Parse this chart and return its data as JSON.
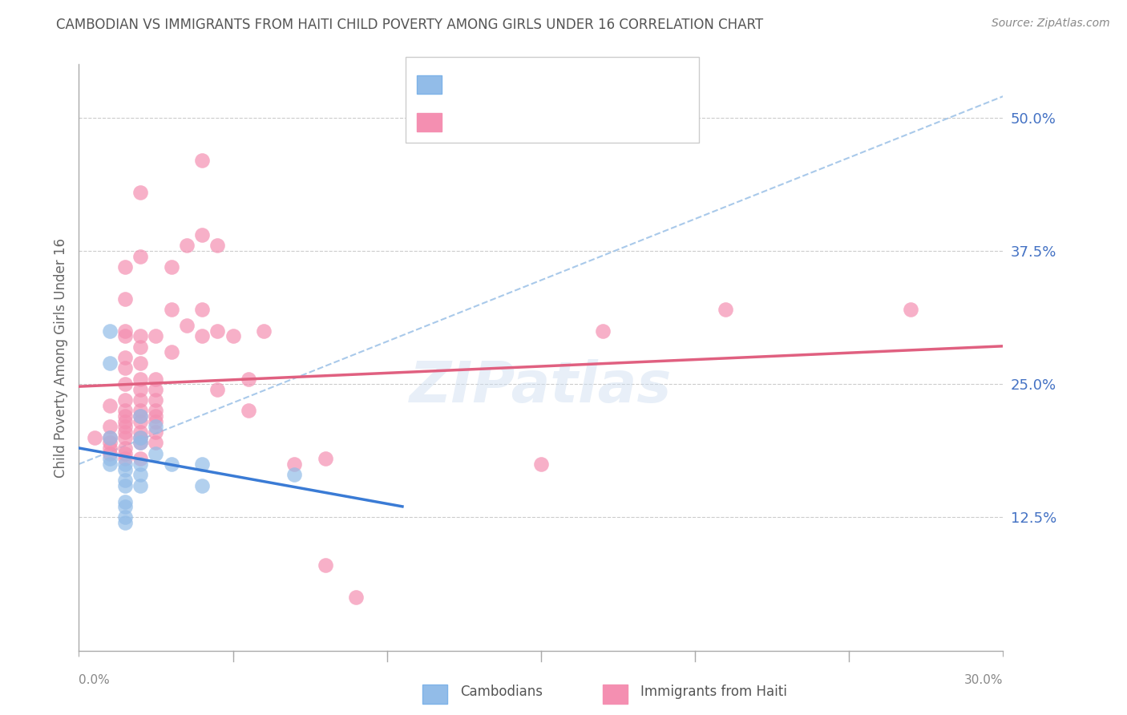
{
  "title": "CAMBODIAN VS IMMIGRANTS FROM HAITI CHILD POVERTY AMONG GIRLS UNDER 16 CORRELATION CHART",
  "source": "Source: ZipAtlas.com",
  "ylabel": "Child Poverty Among Girls Under 16",
  "xlabel_bottom_left": "0.0%",
  "xlabel_bottom_right": "30.0%",
  "right_ytick_labels": [
    "50.0%",
    "37.5%",
    "25.0%",
    "12.5%"
  ],
  "right_ytick_values": [
    0.5,
    0.375,
    0.25,
    0.125
  ],
  "xmin": 0.0,
  "xmax": 0.3,
  "ymin": 0.0,
  "ymax": 0.55,
  "cambodian_color": "#92bce8",
  "haiti_color": "#f48fb1",
  "watermark": "ZIPatlas",
  "background_color": "#ffffff",
  "grid_color": "#cccccc",
  "title_color": "#555555",
  "right_axis_label_color": "#4472c4",
  "dashed_line_color": "#a0c4e8",
  "cambodian_trend_color": "#3a7bd5",
  "haiti_trend_color": "#e06080",
  "cambodian_points": [
    [
      0.01,
      0.3
    ],
    [
      0.01,
      0.27
    ],
    [
      0.01,
      0.2
    ],
    [
      0.01,
      0.18
    ],
    [
      0.01,
      0.175
    ],
    [
      0.015,
      0.175
    ],
    [
      0.015,
      0.17
    ],
    [
      0.015,
      0.16
    ],
    [
      0.015,
      0.155
    ],
    [
      0.015,
      0.14
    ],
    [
      0.015,
      0.135
    ],
    [
      0.015,
      0.125
    ],
    [
      0.015,
      0.12
    ],
    [
      0.02,
      0.22
    ],
    [
      0.02,
      0.2
    ],
    [
      0.02,
      0.195
    ],
    [
      0.02,
      0.175
    ],
    [
      0.02,
      0.165
    ],
    [
      0.02,
      0.155
    ],
    [
      0.025,
      0.21
    ],
    [
      0.025,
      0.185
    ],
    [
      0.03,
      0.175
    ],
    [
      0.04,
      0.175
    ],
    [
      0.04,
      0.155
    ],
    [
      0.07,
      0.165
    ]
  ],
  "haiti_points": [
    [
      0.005,
      0.2
    ],
    [
      0.01,
      0.23
    ],
    [
      0.01,
      0.21
    ],
    [
      0.01,
      0.2
    ],
    [
      0.01,
      0.195
    ],
    [
      0.01,
      0.19
    ],
    [
      0.01,
      0.185
    ],
    [
      0.015,
      0.36
    ],
    [
      0.015,
      0.33
    ],
    [
      0.015,
      0.3
    ],
    [
      0.015,
      0.295
    ],
    [
      0.015,
      0.275
    ],
    [
      0.015,
      0.265
    ],
    [
      0.015,
      0.25
    ],
    [
      0.015,
      0.235
    ],
    [
      0.015,
      0.225
    ],
    [
      0.015,
      0.22
    ],
    [
      0.015,
      0.215
    ],
    [
      0.015,
      0.21
    ],
    [
      0.015,
      0.205
    ],
    [
      0.015,
      0.2
    ],
    [
      0.015,
      0.19
    ],
    [
      0.015,
      0.185
    ],
    [
      0.015,
      0.18
    ],
    [
      0.02,
      0.43
    ],
    [
      0.02,
      0.37
    ],
    [
      0.02,
      0.295
    ],
    [
      0.02,
      0.285
    ],
    [
      0.02,
      0.27
    ],
    [
      0.02,
      0.255
    ],
    [
      0.02,
      0.245
    ],
    [
      0.02,
      0.235
    ],
    [
      0.02,
      0.225
    ],
    [
      0.02,
      0.22
    ],
    [
      0.02,
      0.215
    ],
    [
      0.02,
      0.205
    ],
    [
      0.02,
      0.2
    ],
    [
      0.02,
      0.195
    ],
    [
      0.02,
      0.18
    ],
    [
      0.025,
      0.295
    ],
    [
      0.025,
      0.255
    ],
    [
      0.025,
      0.245
    ],
    [
      0.025,
      0.235
    ],
    [
      0.025,
      0.225
    ],
    [
      0.025,
      0.22
    ],
    [
      0.025,
      0.215
    ],
    [
      0.025,
      0.205
    ],
    [
      0.025,
      0.195
    ],
    [
      0.03,
      0.36
    ],
    [
      0.03,
      0.32
    ],
    [
      0.03,
      0.28
    ],
    [
      0.035,
      0.38
    ],
    [
      0.035,
      0.305
    ],
    [
      0.04,
      0.46
    ],
    [
      0.04,
      0.39
    ],
    [
      0.04,
      0.32
    ],
    [
      0.04,
      0.295
    ],
    [
      0.045,
      0.38
    ],
    [
      0.045,
      0.3
    ],
    [
      0.045,
      0.245
    ],
    [
      0.05,
      0.295
    ],
    [
      0.055,
      0.255
    ],
    [
      0.055,
      0.225
    ],
    [
      0.06,
      0.3
    ],
    [
      0.07,
      0.175
    ],
    [
      0.08,
      0.18
    ],
    [
      0.08,
      0.08
    ],
    [
      0.09,
      0.05
    ],
    [
      0.15,
      0.175
    ],
    [
      0.17,
      0.3
    ],
    [
      0.21,
      0.32
    ],
    [
      0.27,
      0.32
    ]
  ]
}
